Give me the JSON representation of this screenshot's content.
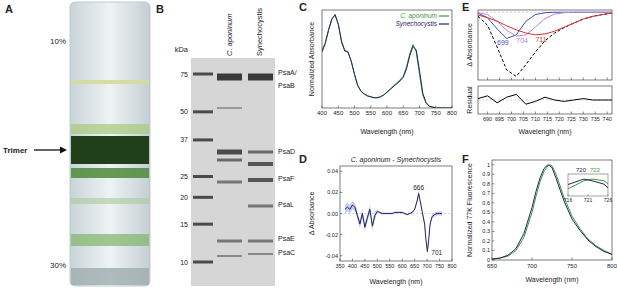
{
  "panel_a": {
    "letter": "A",
    "top_label": "10%",
    "bottom_label": "30%",
    "band_label": "Trimer"
  },
  "panel_b": {
    "letter": "B",
    "unit": "kDa",
    "lanes": [
      "C. aponinum",
      "Synechocystis"
    ],
    "markers": [
      75,
      50,
      37,
      25,
      20,
      15,
      10
    ],
    "proteins": [
      "PsaA/",
      "PsaB",
      "PsaD",
      "PsaF",
      "PsaL",
      "PsaE",
      "PsaC"
    ]
  },
  "chart_data": [
    {
      "panel": "C",
      "type": "line",
      "x_label": "Wavelength (nm)",
      "y_label": "Normalized Absorbance",
      "xlim": [
        400,
        800
      ],
      "xticks": [
        400,
        450,
        500,
        550,
        600,
        650,
        700,
        750,
        800
      ],
      "ylim": [
        0,
        1.05
      ],
      "tick_labels": "x",
      "legend": "top-right",
      "x": [
        400,
        410,
        420,
        430,
        440,
        450,
        460,
        470,
        480,
        490,
        500,
        510,
        520,
        530,
        540,
        550,
        560,
        570,
        580,
        590,
        600,
        610,
        620,
        630,
        640,
        650,
        660,
        670,
        680,
        690,
        700,
        710,
        720,
        730,
        740,
        750,
        760,
        770,
        780,
        790,
        800
      ],
      "series": [
        {
          "name": "C. aponinum",
          "color": "#3c9a3c",
          "values": [
            0.62,
            0.7,
            0.84,
            0.95,
            1.0,
            0.9,
            0.72,
            0.62,
            0.6,
            0.5,
            0.36,
            0.24,
            0.18,
            0.15,
            0.13,
            0.12,
            0.11,
            0.11,
            0.12,
            0.14,
            0.17,
            0.2,
            0.24,
            0.27,
            0.3,
            0.34,
            0.44,
            0.58,
            0.68,
            0.6,
            0.36,
            0.14,
            0.05,
            0.02,
            0.01,
            0,
            0,
            0,
            0,
            0,
            0
          ]
        },
        {
          "name": "Synechocystis",
          "color": "#23235e",
          "values": [
            0.6,
            0.69,
            0.83,
            0.95,
            1.0,
            0.9,
            0.71,
            0.61,
            0.6,
            0.5,
            0.36,
            0.24,
            0.18,
            0.15,
            0.13,
            0.12,
            0.11,
            0.11,
            0.12,
            0.14,
            0.17,
            0.2,
            0.23,
            0.26,
            0.29,
            0.33,
            0.42,
            0.56,
            0.66,
            0.62,
            0.4,
            0.16,
            0.06,
            0.02,
            0.01,
            0,
            0,
            0,
            0,
            0,
            0
          ]
        }
      ]
    },
    {
      "panel": "D",
      "type": "line",
      "title": "C. aponinum - Synechocystis",
      "x_label": "Wavelength (nm)",
      "y_label": "Δ Absorbance",
      "xlim": [
        350,
        800
      ],
      "xticks": [
        350,
        400,
        450,
        500,
        550,
        600,
        650,
        700,
        750,
        800
      ],
      "ylim": [
        -0.045,
        0.045
      ],
      "yticks": [
        -0.04,
        -0.02,
        {
          "value": 0,
          "label": "0.00"
        },
        0.02,
        0.04
      ],
      "x": [
        370,
        380,
        390,
        400,
        410,
        420,
        430,
        440,
        450,
        460,
        470,
        480,
        490,
        500,
        510,
        520,
        530,
        540,
        550,
        560,
        570,
        580,
        590,
        600,
        610,
        620,
        630,
        640,
        650,
        660,
        666,
        672,
        680,
        690,
        695,
        701,
        706,
        712,
        720,
        730,
        740,
        750,
        760
      ],
      "series": [
        {
          "color": "#23235e",
          "values": [
            0.004,
            0.006,
            0.004,
            0.008,
            0.006,
            -0.002,
            -0.01,
            0.0,
            -0.013,
            -0.004,
            0.004,
            -0.012,
            -0.002,
            0.002,
            0.001,
            0.0,
            0.0,
            0.0,
            0.0,
            0.0,
            0.001,
            0.001,
            0.001,
            0.001,
            0.0,
            -0.001,
            0.0,
            0.001,
            0.004,
            0.012,
            0.019,
            0.012,
            0.002,
            -0.01,
            -0.024,
            -0.036,
            -0.026,
            -0.01,
            -0.003,
            -0.001,
            0.0,
            0.0,
            0.0
          ],
          "errors": [
            0.004,
            0.004,
            0.004,
            0.004,
            0.004,
            0.004,
            0.004,
            0.004,
            0.004,
            0.004,
            0.004,
            0.004,
            0.004,
            0.001,
            0.001,
            0.001,
            0.001,
            0.001,
            0.001,
            0.001,
            0.001,
            0.001,
            0.001,
            0.001,
            0.001,
            0.001,
            0.001,
            0.001,
            0.001,
            0.002,
            0.002,
            0.002,
            0.002,
            0.002,
            0.002,
            0.002,
            0.002,
            0.002,
            0.002,
            0.002,
            0.002,
            0.002,
            0.002
          ]
        }
      ],
      "annotations": [
        {
          "text": "666",
          "x": 666,
          "y": 0.019
        },
        {
          "text": "701",
          "x": 701,
          "y": -0.036
        }
      ]
    },
    {
      "panel": "E",
      "type": "line",
      "y_label": "Δ Absorbance",
      "xlim": [
        686,
        742
      ],
      "xticks": [
        690,
        695,
        700,
        705,
        710,
        715,
        720,
        725,
        730,
        735,
        740
      ],
      "ylim": [
        -1.5,
        0.05
      ],
      "tick_labels": false,
      "x": [
        686,
        690,
        694,
        698,
        702,
        706,
        710,
        714,
        718,
        722,
        726,
        730,
        734,
        738,
        742
      ],
      "series": [
        {
          "color": "#000000",
          "line_style": "dashed",
          "values": [
            -0.09,
            -0.29,
            -0.77,
            -1.28,
            -1.42,
            -1.16,
            -0.88,
            -0.63,
            -0.46,
            -0.34,
            -0.24,
            -0.15,
            -0.09,
            -0.05,
            -0.02
          ]
        },
        {
          "name": "699",
          "color": "#3b4fc4",
          "values": [
            -0.02,
            -0.12,
            -0.37,
            -0.58,
            -0.5,
            -0.2,
            -0.05,
            -0.01,
            0,
            0,
            0,
            0,
            0,
            0,
            0
          ]
        },
        {
          "name": "704",
          "color": "#b58ad8",
          "values": [
            -0.01,
            -0.05,
            -0.2,
            -0.4,
            -0.53,
            -0.5,
            -0.33,
            -0.14,
            -0.04,
            -0.01,
            0,
            0,
            0,
            0,
            0
          ]
        },
        {
          "name": "711",
          "color": "#d9302a",
          "values": [
            -0.06,
            -0.12,
            -0.2,
            -0.3,
            -0.39,
            -0.46,
            -0.5,
            -0.48,
            -0.42,
            -0.33,
            -0.24,
            -0.15,
            -0.09,
            -0.05,
            -0.02
          ]
        }
      ]
    },
    {
      "type": "line",
      "y_label": "Residual",
      "x_label": "Wavelength (nm)",
      "xlim": [
        686,
        742
      ],
      "xticks": [
        690,
        695,
        700,
        705,
        710,
        715,
        720,
        725,
        730,
        735,
        740
      ],
      "ylim": [
        -0.1,
        0.1
      ],
      "tick_labels": "x",
      "x": [
        686,
        690,
        694,
        698,
        702,
        706,
        710,
        714,
        718,
        722,
        726,
        730,
        734,
        738,
        742
      ],
      "series": [
        {
          "color": "#000000",
          "values": [
            0.01,
            0.03,
            -0.02,
            0.02,
            0.04,
            -0.03,
            -0.01,
            0.02,
            0.0,
            -0.01,
            0.0,
            0.01,
            0.0,
            0.0,
            0.0
          ]
        }
      ]
    },
    {
      "panel": "F",
      "type": "line",
      "y_label": "Normalized 77K Fluorescence",
      "x_label": "Wavelength (nm)",
      "xlim": [
        650,
        800
      ],
      "xticks": [
        650,
        700,
        750,
        800
      ],
      "ylim": [
        0,
        1.05
      ],
      "yticks": [
        0,
        0.1,
        0.2,
        0.3,
        0.4,
        0.5,
        0.6,
        0.7,
        0.8,
        0.9,
        1
      ],
      "x": [
        650,
        660,
        670,
        680,
        690,
        700,
        705,
        710,
        715,
        720,
        722,
        725,
        730,
        740,
        750,
        760,
        770,
        780,
        790,
        800
      ],
      "series": [
        {
          "color": "#3c9a3c",
          "values": [
            0.01,
            0.02,
            0.04,
            0.1,
            0.24,
            0.5,
            0.67,
            0.82,
            0.93,
            0.99,
            1.0,
            0.99,
            0.9,
            0.66,
            0.46,
            0.33,
            0.22,
            0.15,
            0.1,
            0.06
          ]
        },
        {
          "color": "#23235e",
          "values": [
            0.01,
            0.02,
            0.05,
            0.12,
            0.28,
            0.55,
            0.72,
            0.86,
            0.96,
            1.0,
            0.99,
            0.97,
            0.86,
            0.62,
            0.43,
            0.31,
            0.21,
            0.14,
            0.09,
            0.06
          ]
        }
      ],
      "inset": {
        "xlim": [
          716,
          726
        ],
        "xticks": [
          716,
          721,
          726
        ],
        "ylim": [
          0.9,
          1.03
        ],
        "annotations": [
          {
            "text": "720",
            "x": 720,
            "y": 1.0,
            "color": "#23235e"
          },
          {
            "text": "722",
            "x": 722,
            "y": 1.0,
            "color": "#3c9a3c"
          }
        ]
      }
    }
  ]
}
